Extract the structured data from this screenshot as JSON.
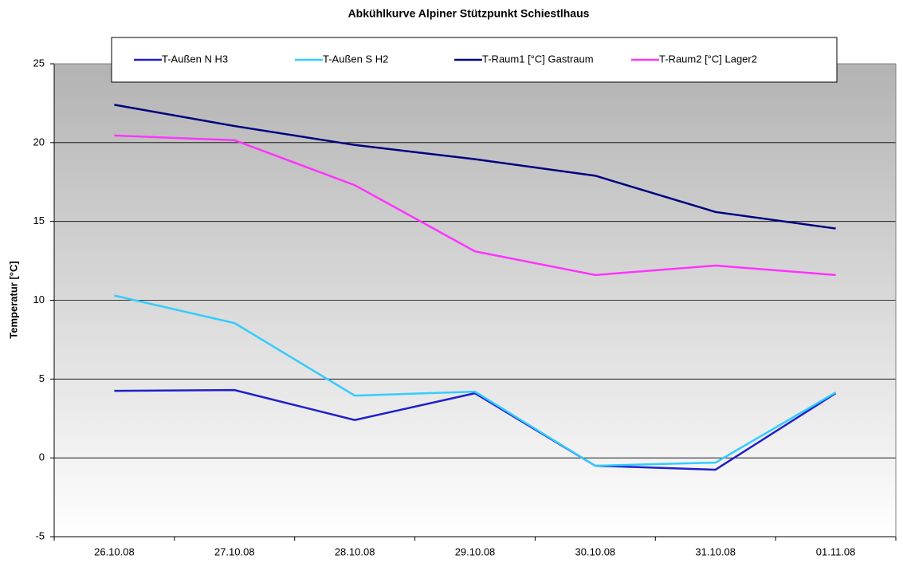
{
  "chart_data": {
    "type": "line",
    "title": "Abkühlkurve Alpiner Stützpunkt Schiestlhaus",
    "y_label": "Temperatur [°C]",
    "categories": [
      "26.10.08",
      "27.10.08",
      "28.10.08",
      "29.10.08",
      "30.10.08",
      "31.10.08",
      "01.11.08"
    ],
    "series": [
      {
        "name": "T-Außen N H3",
        "color": "#1f1fcc",
        "values": [
          4.25,
          4.3,
          2.4,
          4.1,
          -0.5,
          -0.75,
          4.1
        ]
      },
      {
        "name": "T-Außen S H2",
        "color": "#33ccff",
        "values": [
          10.3,
          8.55,
          3.95,
          4.2,
          -0.5,
          -0.3,
          4.15
        ]
      },
      {
        "name": "T-Raum1 [°C] Gastraum",
        "color": "#000080",
        "values": [
          22.4,
          21.05,
          19.85,
          18.95,
          17.9,
          15.6,
          14.55
        ]
      },
      {
        "name": "T-Raum2 [°C] Lager2",
        "color": "#ff33ff",
        "values": [
          20.45,
          20.15,
          17.3,
          13.1,
          11.6,
          12.2,
          11.6
        ]
      }
    ],
    "ylim": [
      -5,
      25
    ],
    "yticks": [
      -5,
      0,
      5,
      10,
      15,
      20,
      25
    ],
    "grid": true
  }
}
